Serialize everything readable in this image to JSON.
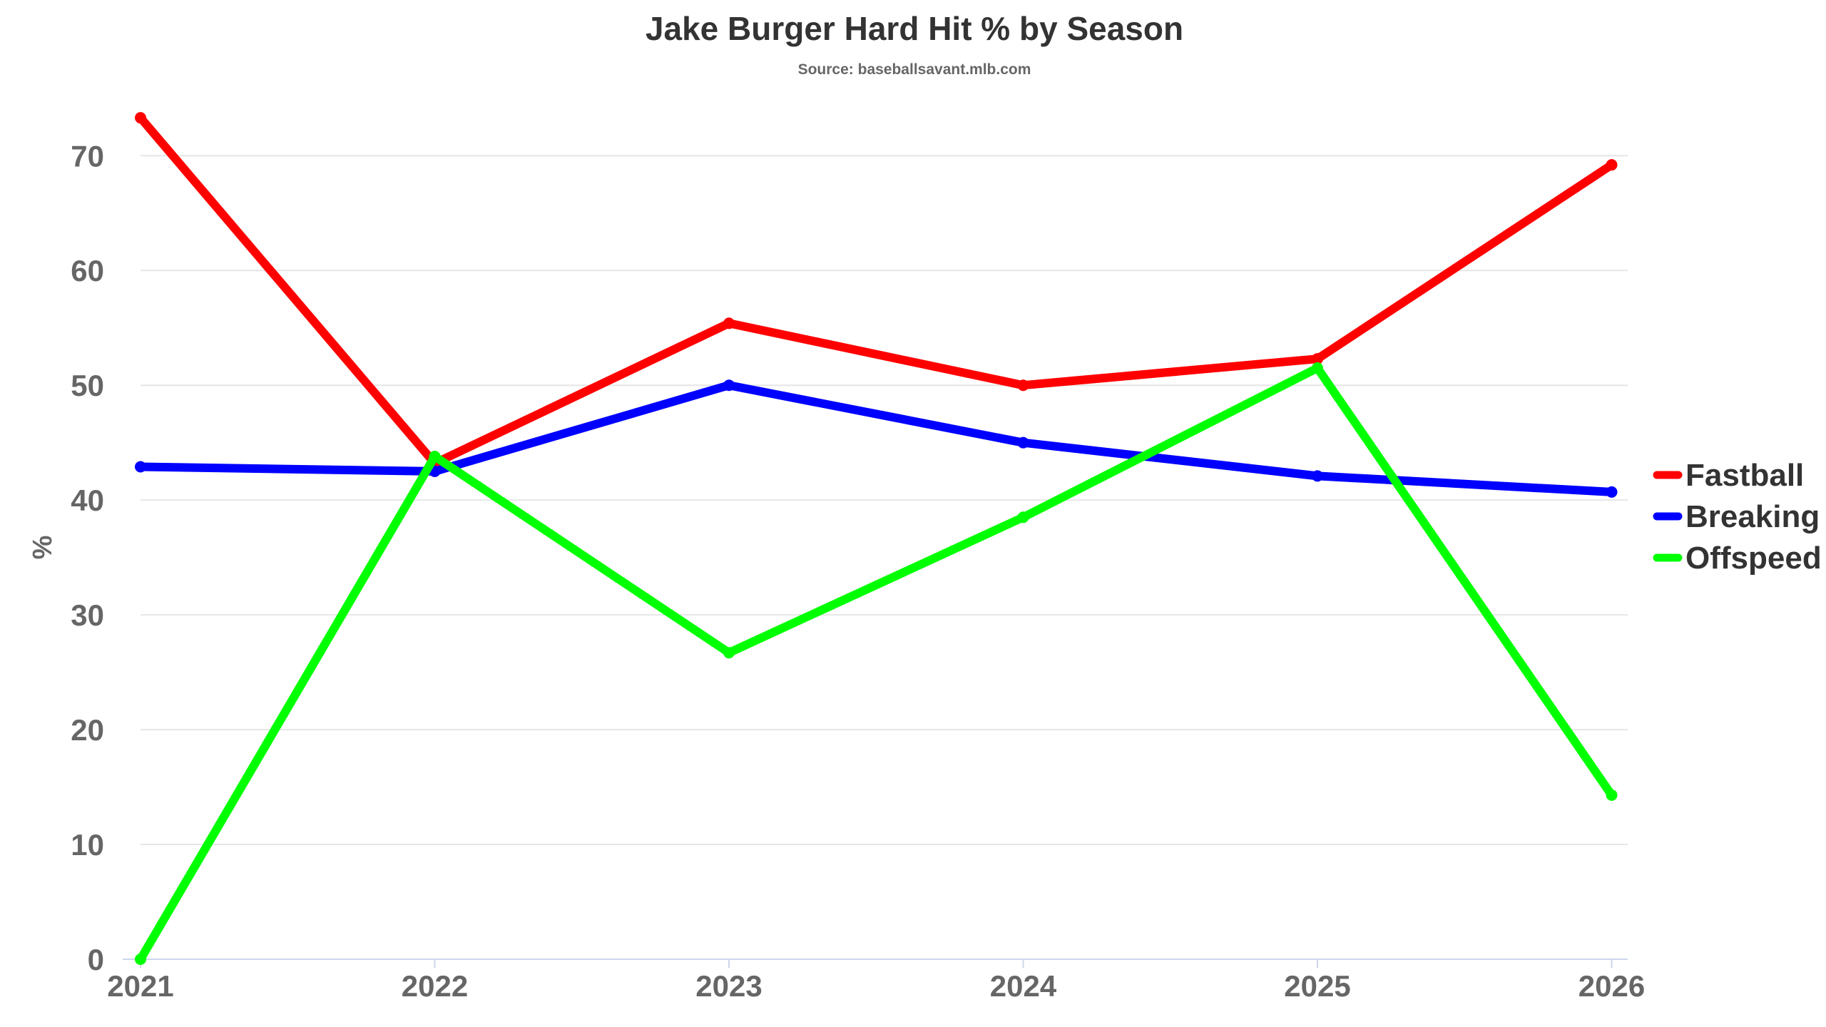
{
  "chart_data": {
    "type": "line",
    "title": "Jake Burger Hard Hit % by Season",
    "subtitle": "Source: baseballsavant.mlb.com",
    "xlabel": "",
    "ylabel": "%",
    "categories": [
      "2021",
      "2022",
      "2023",
      "2024",
      "2025",
      "2026"
    ],
    "ylim": [
      0,
      73
    ],
    "yticks": [
      0,
      10,
      20,
      30,
      40,
      50,
      60,
      70
    ],
    "grid": true,
    "legend_position": "right",
    "series": [
      {
        "name": "Fastball",
        "color": "#ff0000",
        "values": [
          73.3,
          43.2,
          55.4,
          50.0,
          52.3,
          69.2
        ]
      },
      {
        "name": "Breaking",
        "color": "#0000ff",
        "values": [
          42.9,
          42.5,
          50.0,
          45.0,
          42.1,
          40.7
        ]
      },
      {
        "name": "Offspeed",
        "color": "#00ff00",
        "values": [
          0.0,
          43.8,
          26.7,
          38.5,
          51.5,
          14.3
        ]
      }
    ]
  }
}
